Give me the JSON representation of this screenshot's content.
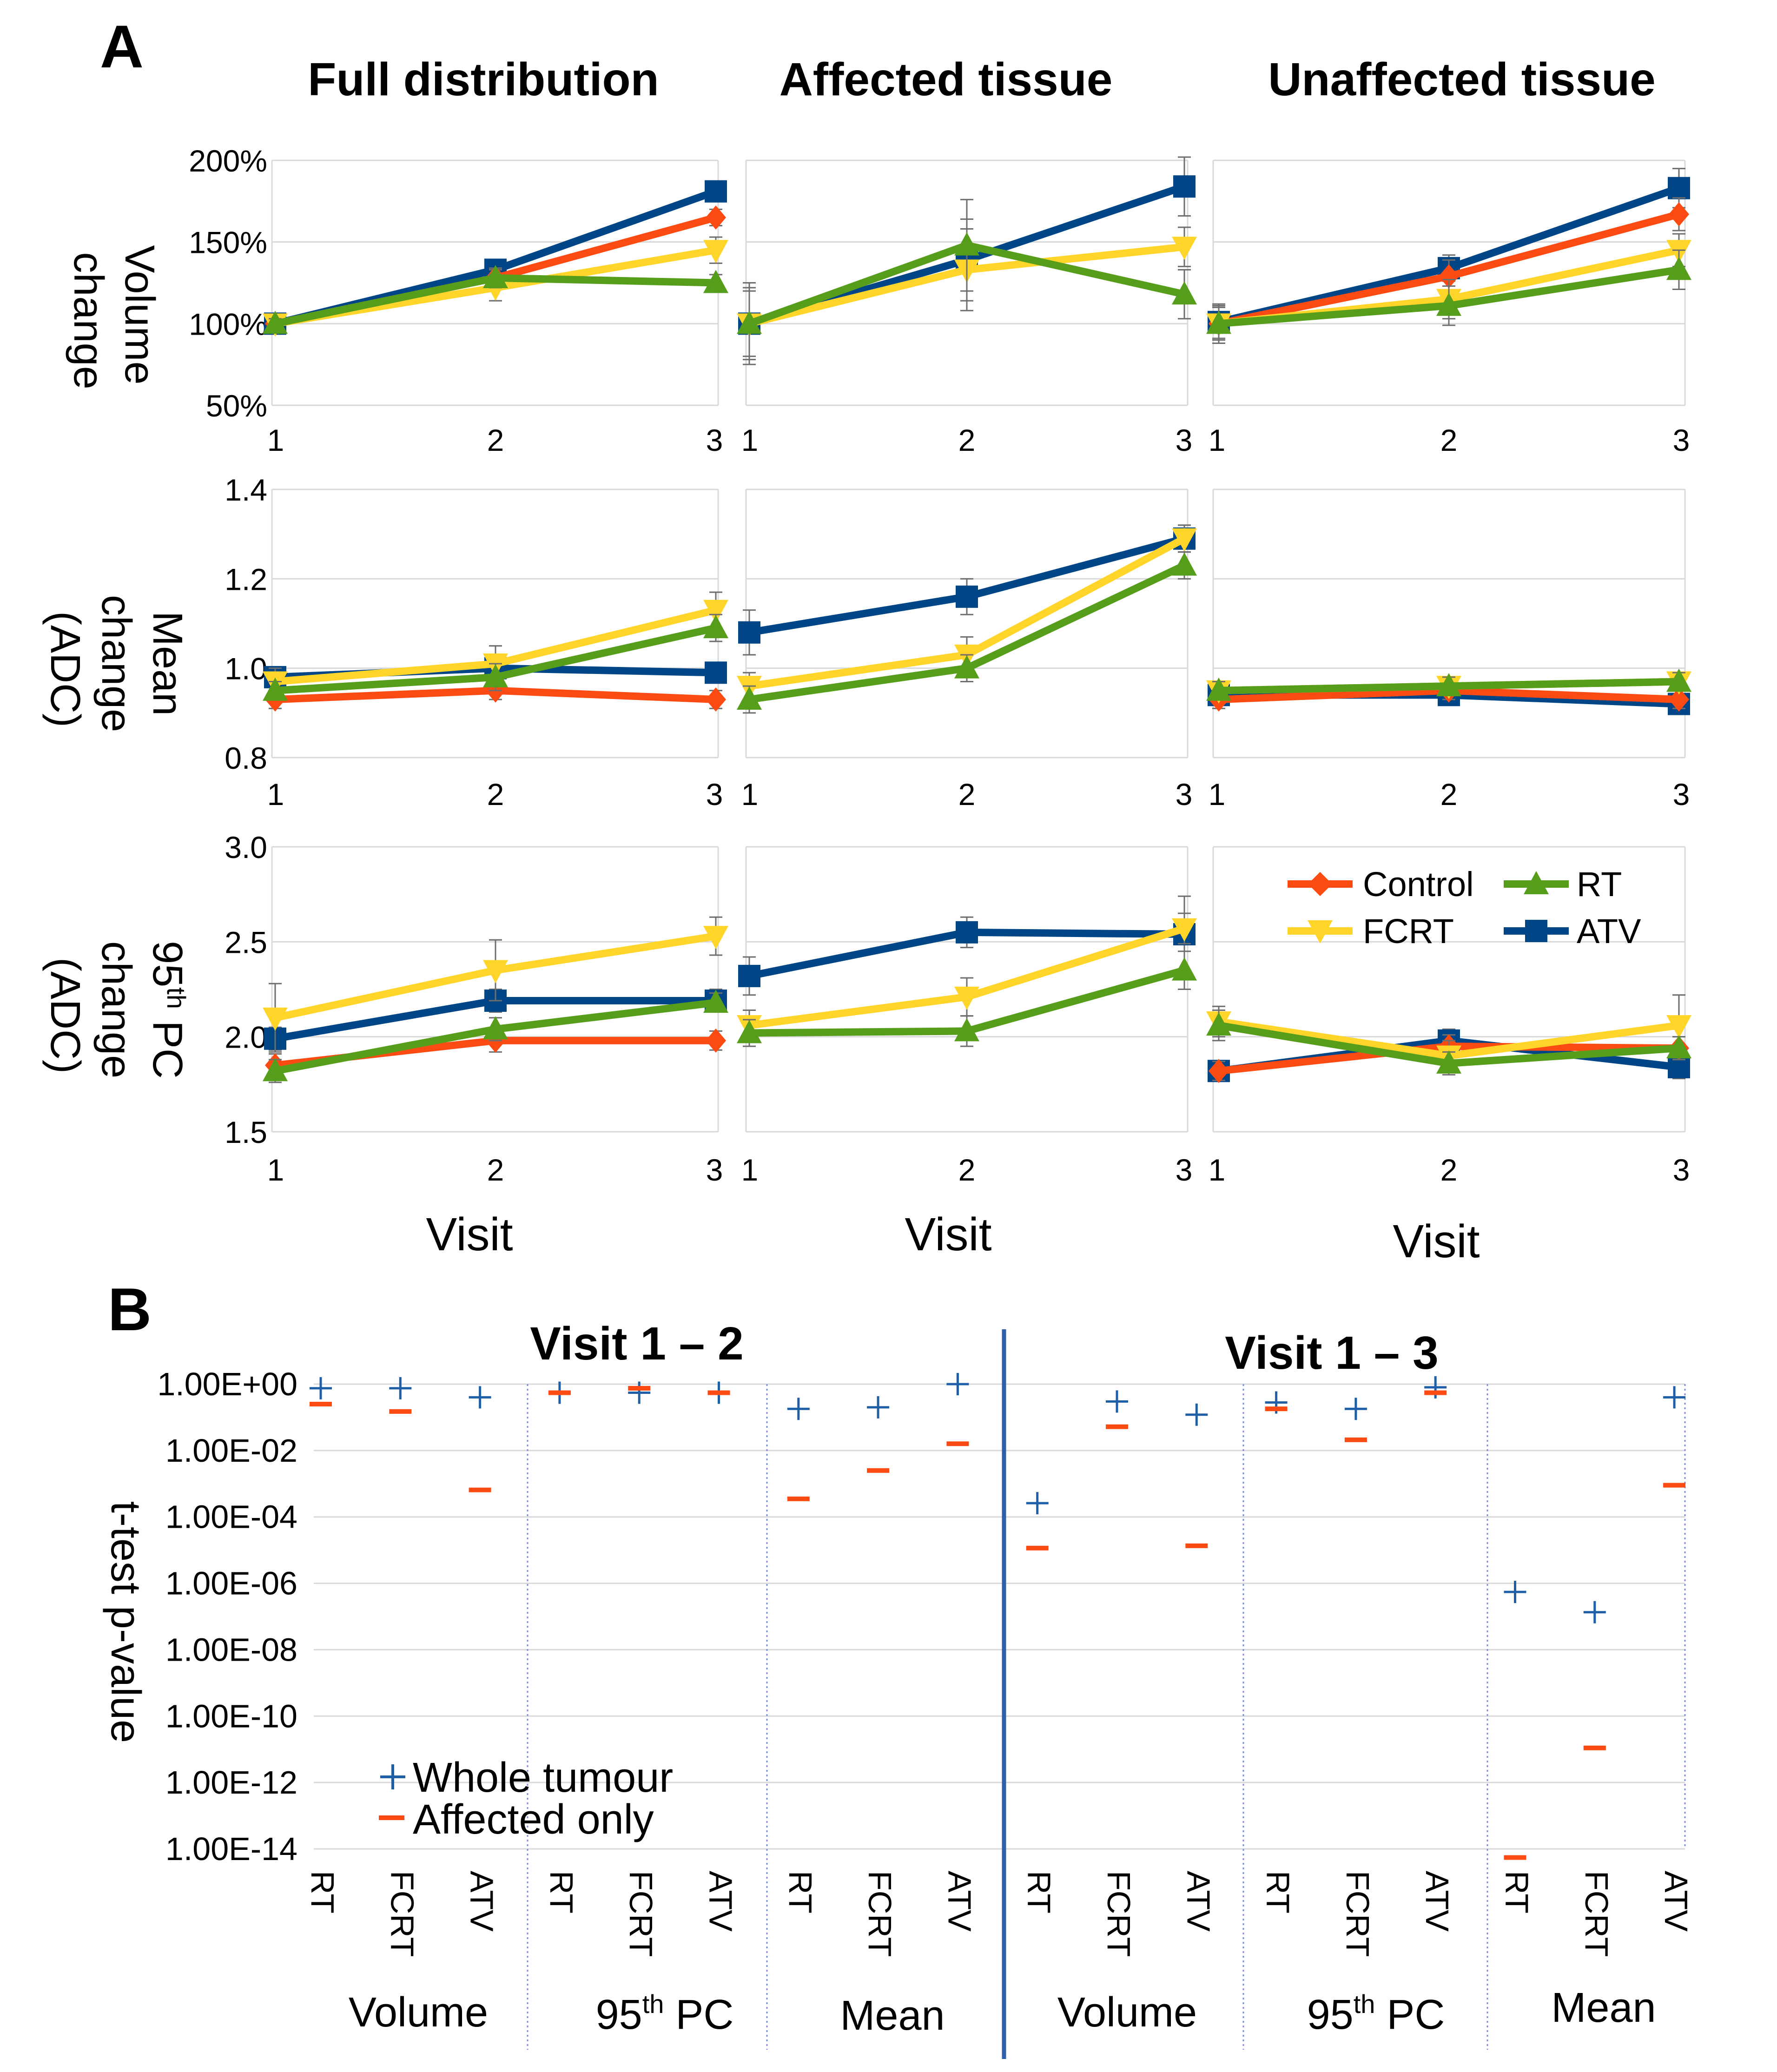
{
  "colors": {
    "Control": "#fc4b12",
    "FCRT": "#ffd52a",
    "RT": "#579d1c",
    "ATV": "#004586",
    "whole_marker": "#1f5fa8",
    "affected_marker": "#fc4b12",
    "divider": "#2e5fa8"
  },
  "panelA": {
    "letter": "A",
    "col_titles": [
      "Full distribution",
      "Affected tissue",
      "Unaffected tissue"
    ],
    "row_ylabels": [
      [
        "Volume",
        "change"
      ],
      [
        "Mean",
        "change",
        "(ADC)"
      ],
      [
        "95<th> PC",
        "change",
        "(ADC)"
      ]
    ],
    "x_axis_label": "Visit",
    "legend": [
      {
        "label": "Control",
        "series": "Control",
        "marker": "diamond-icon"
      },
      {
        "label": "RT",
        "series": "RT",
        "marker": "triangle-up-icon"
      },
      {
        "label": "FCRT",
        "series": "FCRT",
        "marker": "triangle-down-icon"
      },
      {
        "label": "ATV",
        "series": "ATV",
        "marker": "square-icon"
      }
    ]
  },
  "panelB": {
    "letter": "B",
    "y_label": "t-test p-value",
    "visit_titles": [
      "Visit 1 – 2",
      "Visit 1 – 3"
    ],
    "legend": [
      {
        "label": "Whole tumour",
        "marker": "plus-icon"
      },
      {
        "label": "Affected only",
        "marker": "dash-icon"
      }
    ]
  },
  "chart_data": [
    {
      "type": "line",
      "panel": "A",
      "row": 0,
      "col": 0,
      "title": "Full distribution",
      "ylabel": "Volume change",
      "xlabel": "",
      "x": [
        1,
        2,
        3
      ],
      "ylim": [
        0.5,
        2.0
      ],
      "yticks": [
        0.5,
        1.0,
        1.5,
        2.0
      ],
      "yticklabels": [
        "50%",
        "100%",
        "150%",
        "200%"
      ],
      "series": [
        {
          "name": "Control",
          "values": [
            1.0,
            1.28,
            1.65
          ],
          "err": [
            0.03,
            0.05,
            0.05
          ]
        },
        {
          "name": "FCRT",
          "values": [
            1.0,
            1.22,
            1.45
          ],
          "err": [
            0.03,
            0.08,
            0.08
          ]
        },
        {
          "name": "RT",
          "values": [
            1.0,
            1.28,
            1.25
          ],
          "err": [
            0.03,
            0.06,
            0.05
          ]
        },
        {
          "name": "ATV",
          "values": [
            1.0,
            1.33,
            1.81
          ],
          "err": [
            0.03,
            0.05,
            0.05
          ]
        }
      ]
    },
    {
      "type": "line",
      "panel": "A",
      "row": 0,
      "col": 1,
      "title": "Affected tissue",
      "ylabel": "Volume change",
      "xlabel": "",
      "x": [
        1,
        2,
        3
      ],
      "ylim": [
        0.5,
        2.0
      ],
      "yticks": [
        0.5,
        1.0,
        1.5,
        2.0
      ],
      "yticklabels": [
        "50%",
        "100%",
        "150%",
        "200%"
      ],
      "series": [
        {
          "name": "FCRT",
          "values": [
            1.0,
            1.33,
            1.47
          ],
          "err": [
            0.22,
            0.25,
            0.12
          ]
        },
        {
          "name": "RT",
          "values": [
            1.0,
            1.48,
            1.18
          ],
          "err": [
            0.25,
            0.28,
            0.15
          ]
        },
        {
          "name": "ATV",
          "values": [
            1.0,
            1.39,
            1.84
          ],
          "err": [
            0.2,
            0.25,
            0.18
          ]
        }
      ]
    },
    {
      "type": "line",
      "panel": "A",
      "row": 0,
      "col": 2,
      "title": "Unaffected tissue",
      "ylabel": "Volume change",
      "xlabel": "",
      "x": [
        1,
        2,
        3
      ],
      "ylim": [
        0.5,
        2.0
      ],
      "yticks": [
        0.5,
        1.0,
        1.5,
        2.0
      ],
      "yticklabels": [
        "50%",
        "100%",
        "150%",
        "200%"
      ],
      "series": [
        {
          "name": "Control",
          "values": [
            1.0,
            1.29,
            1.67
          ],
          "err": [
            0.1,
            0.1,
            0.1
          ]
        },
        {
          "name": "FCRT",
          "values": [
            1.0,
            1.15,
            1.45
          ],
          "err": [
            0.1,
            0.12,
            0.1
          ]
        },
        {
          "name": "RT",
          "values": [
            1.0,
            1.11,
            1.33
          ],
          "err": [
            0.12,
            0.12,
            0.12
          ]
        },
        {
          "name": "ATV",
          "values": [
            1.01,
            1.34,
            1.83
          ],
          "err": [
            0.1,
            0.08,
            0.12
          ]
        }
      ]
    },
    {
      "type": "line",
      "panel": "A",
      "row": 1,
      "col": 0,
      "title": "Full distribution",
      "ylabel": "Mean change (ADC)",
      "xlabel": "",
      "x": [
        1,
        2,
        3
      ],
      "ylim": [
        0.8,
        1.4
      ],
      "yticks": [
        0.8,
        1.0,
        1.2,
        1.4
      ],
      "yticklabels": [
        "0.8",
        "1.0",
        "1.2",
        "1.4"
      ],
      "series": [
        {
          "name": "Control",
          "values": [
            0.93,
            0.95,
            0.93
          ],
          "err": [
            0.02,
            0.02,
            0.02
          ]
        },
        {
          "name": "FCRT",
          "values": [
            0.97,
            1.01,
            1.13
          ],
          "err": [
            0.03,
            0.04,
            0.04
          ]
        },
        {
          "name": "RT",
          "values": [
            0.95,
            0.98,
            1.09
          ],
          "err": [
            0.02,
            0.03,
            0.03
          ]
        },
        {
          "name": "ATV",
          "values": [
            0.98,
            1.0,
            0.99
          ],
          "err": [
            0.02,
            0.02,
            0.02
          ]
        }
      ]
    },
    {
      "type": "line",
      "panel": "A",
      "row": 1,
      "col": 1,
      "title": "Affected tissue",
      "ylabel": "Mean change (ADC)",
      "xlabel": "",
      "x": [
        1,
        2,
        3
      ],
      "ylim": [
        0.8,
        1.4
      ],
      "yticks": [
        0.8,
        1.0,
        1.2,
        1.4
      ],
      "yticklabels": [
        "0.8",
        "1.0",
        "1.2",
        "1.4"
      ],
      "series": [
        {
          "name": "FCRT",
          "values": [
            0.96,
            1.03,
            1.29
          ],
          "err": [
            0.03,
            0.04,
            0.03
          ]
        },
        {
          "name": "RT",
          "values": [
            0.93,
            1.0,
            1.23
          ],
          "err": [
            0.03,
            0.03,
            0.03
          ]
        },
        {
          "name": "ATV",
          "values": [
            1.08,
            1.16,
            1.29
          ],
          "err": [
            0.05,
            0.04,
            0.03
          ]
        }
      ]
    },
    {
      "type": "line",
      "panel": "A",
      "row": 1,
      "col": 2,
      "title": "Unaffected tissue",
      "ylabel": "Mean change (ADC)",
      "xlabel": "",
      "x": [
        1,
        2,
        3
      ],
      "ylim": [
        0.8,
        1.4
      ],
      "yticks": [
        0.8,
        1.0,
        1.2,
        1.4
      ],
      "yticklabels": [
        "0.8",
        "1.0",
        "1.2",
        "1.4"
      ],
      "series": [
        {
          "name": "Control",
          "values": [
            0.93,
            0.95,
            0.93
          ],
          "err": [
            0.02,
            0.02,
            0.02
          ]
        },
        {
          "name": "FCRT",
          "values": [
            0.95,
            0.96,
            0.97
          ],
          "err": [
            0.02,
            0.02,
            0.02
          ]
        },
        {
          "name": "RT",
          "values": [
            0.95,
            0.96,
            0.97
          ],
          "err": [
            0.02,
            0.02,
            0.02
          ]
        },
        {
          "name": "ATV",
          "values": [
            0.94,
            0.94,
            0.92
          ],
          "err": [
            0.02,
            0.02,
            0.02
          ]
        }
      ]
    },
    {
      "type": "line",
      "panel": "A",
      "row": 2,
      "col": 0,
      "title": "Full distribution",
      "ylabel": "95th PC change (ADC)",
      "xlabel": "Visit",
      "x": [
        1,
        2,
        3
      ],
      "ylim": [
        1.5,
        3.0
      ],
      "yticks": [
        1.5,
        2.0,
        2.5,
        3.0
      ],
      "yticklabels": [
        "1.5",
        "2.0",
        "2.5",
        "3.0"
      ],
      "series": [
        {
          "name": "Control",
          "values": [
            1.85,
            1.98,
            1.98
          ],
          "err": [
            0.06,
            0.06,
            0.05
          ]
        },
        {
          "name": "FCRT",
          "values": [
            2.1,
            2.35,
            2.53
          ],
          "err": [
            0.18,
            0.16,
            0.1
          ]
        },
        {
          "name": "RT",
          "values": [
            1.82,
            2.04,
            2.18
          ],
          "err": [
            0.06,
            0.06,
            0.05
          ]
        },
        {
          "name": "ATV",
          "values": [
            1.99,
            2.19,
            2.19
          ],
          "err": [
            0.06,
            0.06,
            0.06
          ]
        }
      ]
    },
    {
      "type": "line",
      "panel": "A",
      "row": 2,
      "col": 1,
      "title": "Affected tissue",
      "ylabel": "95th PC change (ADC)",
      "xlabel": "Visit",
      "x": [
        1,
        2,
        3
      ],
      "ylim": [
        1.5,
        3.0
      ],
      "yticks": [
        1.5,
        2.0,
        2.5,
        3.0
      ],
      "yticklabels": [
        "1.5",
        "2.0",
        "2.5",
        "3.0"
      ],
      "series": [
        {
          "name": "FCRT",
          "values": [
            2.06,
            2.21,
            2.57
          ],
          "err": [
            0.08,
            0.1,
            0.08
          ]
        },
        {
          "name": "RT",
          "values": [
            2.02,
            2.03,
            2.35
          ],
          "err": [
            0.07,
            0.08,
            0.1
          ]
        },
        {
          "name": "ATV",
          "values": [
            2.32,
            2.55,
            2.54
          ],
          "err": [
            0.1,
            0.08,
            0.2
          ]
        }
      ]
    },
    {
      "type": "line",
      "panel": "A",
      "row": 2,
      "col": 2,
      "title": "Unaffected tissue",
      "ylabel": "95th PC change (ADC)",
      "xlabel": "Visit",
      "x": [
        1,
        2,
        3
      ],
      "ylim": [
        1.5,
        3.0
      ],
      "yticks": [
        1.5,
        2.0,
        2.5,
        3.0
      ],
      "yticklabels": [
        "1.5",
        "2.0",
        "2.5",
        "3.0"
      ],
      "series": [
        {
          "name": "Control",
          "values": [
            1.82,
            1.95,
            1.94
          ],
          "err": [
            0.05,
            0.06,
            0.06
          ]
        },
        {
          "name": "FCRT",
          "values": [
            2.08,
            1.9,
            2.06
          ],
          "err": [
            0.08,
            0.08,
            0.16
          ]
        },
        {
          "name": "RT",
          "values": [
            2.06,
            1.86,
            1.94
          ],
          "err": [
            0.08,
            0.06,
            0.06
          ]
        },
        {
          "name": "ATV",
          "values": [
            1.82,
            1.98,
            1.84
          ],
          "err": [
            0.05,
            0.06,
            0.06
          ]
        }
      ]
    },
    {
      "type": "scatter",
      "panel": "B",
      "title": "t-test p-value",
      "yscale": "log",
      "ylabel": "t-test p-value",
      "ylim_exp": [
        -14,
        0
      ],
      "yticklabels": [
        "1.00E-14",
        "1.00E-12",
        "1.00E-10",
        "1.00E-08",
        "1.00E-06",
        "1.00E-04",
        "1.00E-02",
        "1.00E+00"
      ],
      "categories": [
        "RT",
        "FCRT",
        "ATV",
        "RT",
        "FCRT",
        "ATV",
        "RT",
        "FCRT",
        "ATV",
        "RT",
        "FCRT",
        "ATV",
        "RT",
        "FCRT",
        "ATV",
        "RT",
        "FCRT",
        "ATV"
      ],
      "groups": [
        {
          "label": "Volume",
          "sup": "",
          "suffix": ""
        },
        {
          "label": "95",
          "sup": "th",
          "suffix": " PC"
        },
        {
          "label": "Mean",
          "sup": "",
          "suffix": ""
        },
        {
          "label": "Volume",
          "sup": "",
          "suffix": ""
        },
        {
          "label": "95",
          "sup": "th",
          "suffix": " PC"
        },
        {
          "label": "Mean",
          "sup": "",
          "suffix": ""
        }
      ],
      "series": [
        {
          "name": "Whole tumour",
          "values": [
            0.75,
            0.75,
            0.4,
            0.55,
            0.55,
            0.55,
            0.18,
            0.2,
            1.0,
            0.00026,
            0.3,
            0.12,
            0.28,
            0.18,
            0.8,
            5.5e-07,
            1.35e-07,
            0.4
          ]
        },
        {
          "name": "Affected only",
          "values": [
            0.25,
            0.15,
            0.00065,
            0.55,
            0.75,
            0.55,
            0.00035,
            0.0025,
            0.016,
            1.15e-05,
            0.052,
            1.35e-05,
            0.18,
            0.021,
            0.55,
            5.5e-15,
            1.1e-11,
            0.0009
          ]
        }
      ]
    }
  ]
}
